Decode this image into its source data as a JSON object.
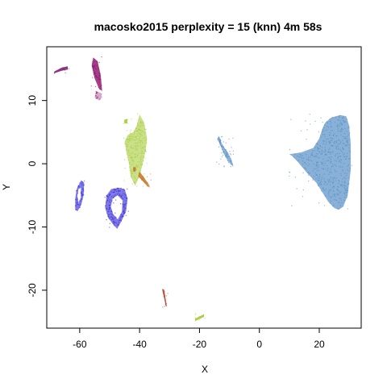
{
  "chart_data": {
    "type": "scatter",
    "title": "macosko2015 perplexity = 15 (knn) 4m 58s",
    "xlabel": "X",
    "ylabel": "Y",
    "xlim": [
      -71,
      34
    ],
    "ylim": [
      -26,
      18.5
    ],
    "xticks": [
      -60,
      -40,
      -20,
      0,
      20
    ],
    "yticks": [
      -20,
      -10,
      0,
      10
    ],
    "grid": false,
    "legend": "none",
    "clusters": [
      {
        "color": "#4a86c0",
        "shape": "polygon",
        "opacity": 0.65,
        "outline": [
          [
            10,
            1.5
          ],
          [
            14,
            1.8
          ],
          [
            18,
            2.5
          ],
          [
            20,
            4
          ],
          [
            21,
            5.5
          ],
          [
            22,
            6.5
          ],
          [
            24,
            7.3
          ],
          [
            27,
            7.7
          ],
          [
            29,
            7.5
          ],
          [
            30,
            6
          ],
          [
            30.5,
            3
          ],
          [
            30.5,
            -1
          ],
          [
            30,
            -3
          ],
          [
            29.5,
            -5
          ],
          [
            28,
            -6.8
          ],
          [
            26.5,
            -7.3
          ],
          [
            25,
            -7
          ],
          [
            23,
            -6
          ],
          [
            21,
            -4.5
          ],
          [
            19,
            -3
          ],
          [
            16,
            -1.5
          ],
          [
            13,
            0.2
          ],
          [
            11,
            1.2
          ]
        ]
      },
      {
        "color": "#4a86c0",
        "shape": "polygon",
        "opacity": 0.6,
        "outline": [
          [
            -13.5,
            4.4
          ],
          [
            -12.5,
            3.2
          ],
          [
            -11.5,
            2.4
          ],
          [
            -10.5,
            1.8
          ],
          [
            -9.5,
            0.8
          ],
          [
            -8.7,
            -0.3
          ],
          [
            -9.4,
            -0.2
          ],
          [
            -10.6,
            0.5
          ],
          [
            -11.8,
            1.5
          ],
          [
            -13,
            2.8
          ],
          [
            -14,
            4
          ]
        ]
      },
      {
        "color": "#2a1fd6",
        "shape": "ring",
        "opacity": 0.6,
        "outline": [
          [
            -47,
            -3.8
          ],
          [
            -45,
            -4
          ],
          [
            -44,
            -5.5
          ],
          [
            -44.5,
            -7.5
          ],
          [
            -46,
            -9
          ],
          [
            -47.5,
            -10.3
          ],
          [
            -49,
            -9.5
          ],
          [
            -50.5,
            -8.5
          ],
          [
            -51.5,
            -7
          ],
          [
            -51,
            -5
          ],
          [
            -49.5,
            -4
          ]
        ],
        "inner": [
          [
            -47.3,
            -5
          ],
          [
            -45.7,
            -5.8
          ],
          [
            -45.9,
            -7.6
          ],
          [
            -47.3,
            -8.8
          ],
          [
            -48.8,
            -8
          ],
          [
            -49.6,
            -6.8
          ],
          [
            -49,
            -5.5
          ]
        ]
      },
      {
        "color": "#2a1fd6",
        "shape": "ring",
        "opacity": 0.6,
        "outline": [
          [
            -59.5,
            -2.6
          ],
          [
            -58.5,
            -3
          ],
          [
            -58.7,
            -5
          ],
          [
            -59.5,
            -6.5
          ],
          [
            -60.7,
            -7.5
          ],
          [
            -61.5,
            -7.3
          ],
          [
            -61.5,
            -5.5
          ],
          [
            -61,
            -4
          ]
        ],
        "inner": [
          [
            -59.6,
            -3.8
          ],
          [
            -59.6,
            -5.3
          ],
          [
            -60.4,
            -6.3
          ],
          [
            -60.8,
            -5.1
          ],
          [
            -60.4,
            -4
          ]
        ]
      },
      {
        "color": "#a6cc3a",
        "shape": "polygon",
        "opacity": 0.6,
        "outline": [
          [
            -40,
            7.8
          ],
          [
            -38.5,
            6.5
          ],
          [
            -37.5,
            4
          ],
          [
            -38,
            2
          ],
          [
            -39,
            0
          ],
          [
            -40,
            -2
          ],
          [
            -41.5,
            -3.5
          ],
          [
            -43,
            -2
          ],
          [
            -43.5,
            0
          ],
          [
            -44.5,
            2
          ],
          [
            -45,
            3.5
          ],
          [
            -44,
            4.5
          ],
          [
            -43,
            4.8
          ],
          [
            -42,
            5
          ],
          [
            -41,
            6
          ]
        ]
      },
      {
        "color": "#a6cc3a",
        "shape": "polygon",
        "opacity": 0.9,
        "outline": [
          [
            -45,
            7
          ],
          [
            -44,
            7.1
          ],
          [
            -44.2,
            6.4
          ],
          [
            -45.1,
            6.4
          ]
        ]
      },
      {
        "color": "#8b0f69",
        "shape": "polygon",
        "opacity": 0.8,
        "outline": [
          [
            -55.5,
            16.8
          ],
          [
            -54,
            16.2
          ],
          [
            -53,
            14
          ],
          [
            -52.5,
            11.5
          ],
          [
            -53.5,
            11.8
          ],
          [
            -55,
            13.5
          ],
          [
            -56,
            15.5
          ]
        ]
      },
      {
        "color": "#8b0f69",
        "shape": "polygon",
        "opacity": 0.35,
        "outline": [
          [
            -54.5,
            11.5
          ],
          [
            -53,
            11.2
          ],
          [
            -52.5,
            10.5
          ],
          [
            -53.5,
            10
          ],
          [
            -55,
            10.5
          ]
        ]
      },
      {
        "color": "#7d1b6e",
        "shape": "polygon",
        "opacity": 0.85,
        "outline": [
          [
            -68.5,
            14.6
          ],
          [
            -66,
            15.2
          ],
          [
            -64,
            15.4
          ],
          [
            -64,
            14.9
          ],
          [
            -66,
            14.7
          ],
          [
            -68.5,
            14.3
          ]
        ]
      },
      {
        "color": "#c8782a",
        "shape": "polygon",
        "opacity": 0.85,
        "outline": [
          [
            -40,
            -1.2
          ],
          [
            -37,
            -3.2
          ],
          [
            -36.5,
            -3.8
          ],
          [
            -37.5,
            -3.5
          ],
          [
            -40.5,
            -2
          ]
        ]
      },
      {
        "color": "#c8782a",
        "shape": "polygon",
        "opacity": 0.85,
        "outline": [
          [
            -42,
            -0.5
          ],
          [
            -41.3,
            -0.6
          ],
          [
            -41.4,
            -1.3
          ],
          [
            -42.1,
            -1.2
          ]
        ]
      },
      {
        "color": "#b5452a",
        "shape": "polygon",
        "opacity": 0.9,
        "outline": [
          [
            -32.5,
            -19.8
          ],
          [
            -31.8,
            -19.9
          ],
          [
            -30.9,
            -22.5
          ],
          [
            -31.2,
            -22.6
          ]
        ]
      },
      {
        "color": "#a6cc3a",
        "shape": "polygon",
        "opacity": 0.95,
        "outline": [
          [
            -21.5,
            -24.5
          ],
          [
            -18.5,
            -23.8
          ],
          [
            -18.5,
            -24.2
          ],
          [
            -21.5,
            -24.9
          ]
        ]
      }
    ]
  }
}
